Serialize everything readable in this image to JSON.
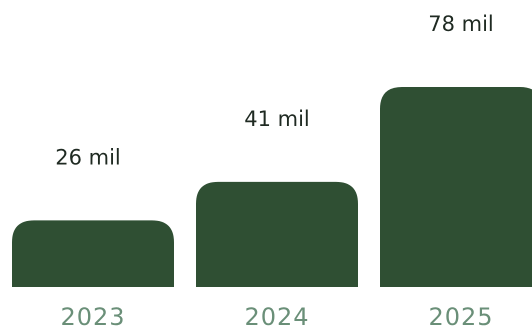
{
  "chart_data": {
    "type": "bar",
    "categories": [
      "2023",
      "2024",
      "2025"
    ],
    "values": [
      26,
      41,
      78
    ],
    "value_labels": [
      "26 mil",
      "41 mil",
      "78 mil"
    ],
    "bar_color": "#2f4f33",
    "category_label_color": "#6a8f78",
    "value_label_color": "#1f2a22",
    "grid": false,
    "legend": "none"
  }
}
